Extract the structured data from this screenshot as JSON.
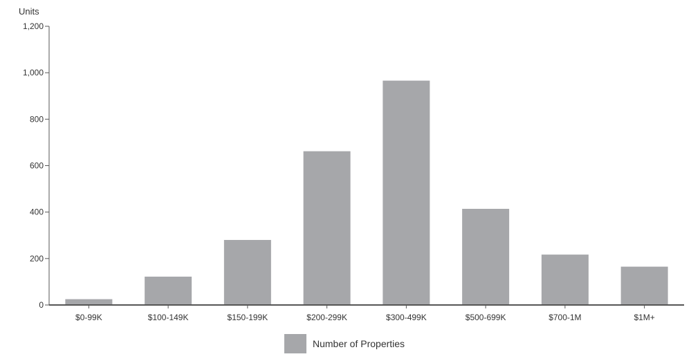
{
  "chart_data": {
    "type": "bar",
    "ylabel": "Units",
    "ylim": [
      0,
      1200
    ],
    "y_ticks": [
      "1,200",
      "1,000",
      "800",
      "600",
      "400",
      "200",
      "0"
    ],
    "y_tick_values": [
      1200,
      1000,
      800,
      600,
      400,
      200,
      0
    ],
    "grid": false,
    "categories": [
      "$0-99K",
      "$100-149K",
      "$150-199K",
      "$200-299K",
      "$300-499K",
      "$500-699K",
      "$700-1M",
      "$1M+"
    ],
    "series": [
      {
        "name": "Number of Properties",
        "values": [
          25,
          122,
          280,
          662,
          966,
          414,
          217,
          165
        ],
        "color": "#a6a7aa"
      }
    ],
    "legend": {
      "position": "bottom-center"
    }
  }
}
